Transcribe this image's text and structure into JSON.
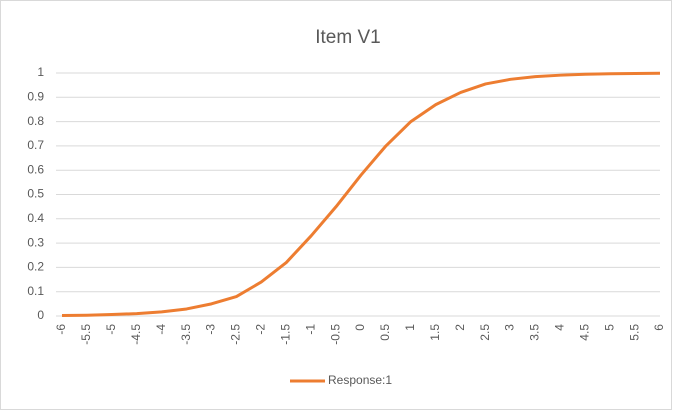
{
  "chart_data": {
    "type": "line",
    "title": "Item V1",
    "categories": [
      "-6",
      "-5.5",
      "-5",
      "-4.5",
      "-4",
      "-3.5",
      "-3",
      "-2.5",
      "-2",
      "-1.5",
      "-1",
      "-0.5",
      "0",
      "0.5",
      "1",
      "1.5",
      "2",
      "2.5",
      "3",
      "3.5",
      "4",
      "4.5",
      "5",
      "5.5",
      "6"
    ],
    "series": [
      {
        "name": "Response:1",
        "color": "#ed7d31",
        "values": [
          0.002,
          0.003,
          0.006,
          0.01,
          0.017,
          0.029,
          0.05,
          0.08,
          0.14,
          0.22,
          0.33,
          0.45,
          0.58,
          0.7,
          0.8,
          0.87,
          0.92,
          0.955,
          0.974,
          0.985,
          0.991,
          0.995,
          0.997,
          0.998,
          0.999
        ]
      }
    ],
    "ylim": [
      0,
      1
    ],
    "yticks": [
      0,
      0.1,
      0.2,
      0.3,
      0.4,
      0.5,
      0.6,
      0.7,
      0.8,
      0.9,
      1
    ],
    "grid": true,
    "legend": "bottom"
  }
}
